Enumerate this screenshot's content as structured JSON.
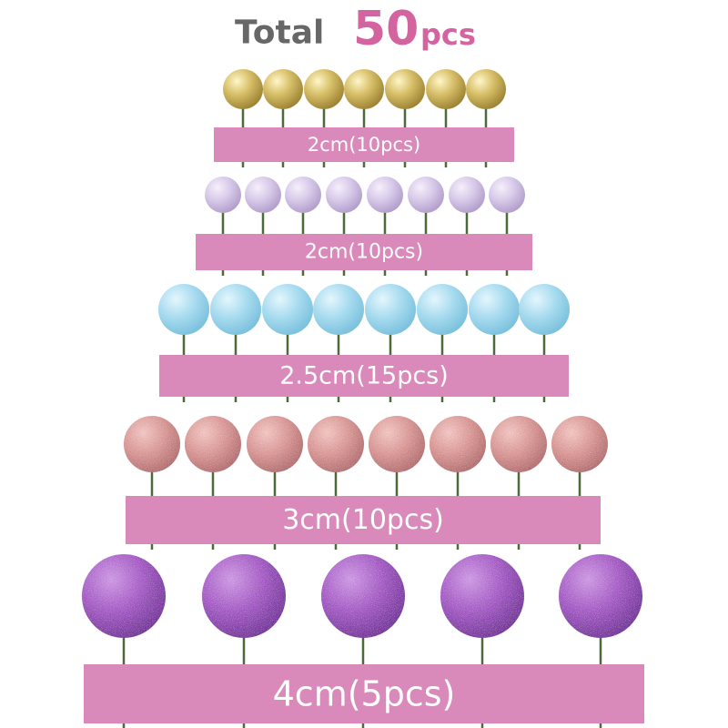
{
  "header": {
    "title": "Total",
    "count": 50,
    "unit": "pcs"
  },
  "rows": [
    {
      "label": "2cm(10pcs)"
    },
    {
      "label": "2cm(10pcs)"
    },
    {
      "label": "2.5cm(15pcs)"
    },
    {
      "label": "3cm(10pcs)"
    },
    {
      "label": "4cm(5pcs)"
    }
  ]
}
